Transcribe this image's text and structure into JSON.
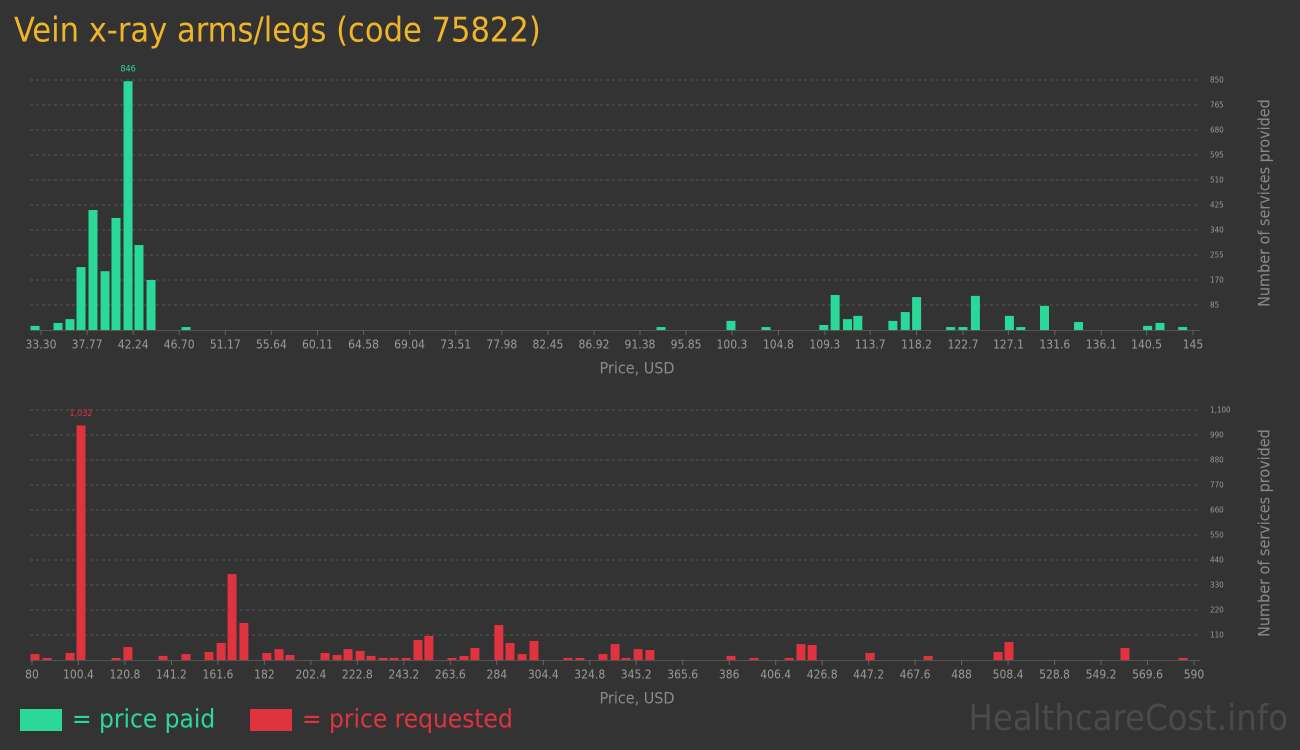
{
  "title": "Vein x-ray arms/legs (code 75822)",
  "watermark": "HealthcareCost.info",
  "chart_data": [
    {
      "type": "bar",
      "xlabel": "Price, USD",
      "ylabel": "Number of services provided",
      "grid": true,
      "max_label": true,
      "x": [
        32.72,
        34.95,
        36.11,
        37.18,
        38.34,
        39.51,
        40.57,
        41.74,
        42.8,
        43.97,
        47.36,
        93.42,
        100.2,
        103.6,
        109.2,
        110.3,
        111.5,
        112.5,
        115.9,
        117.1,
        118.2,
        121.5,
        122.7,
        123.9,
        127.2,
        128.3,
        130.6,
        133.9,
        140.6,
        141.8,
        144.0
      ],
      "series": [
        {
          "name": "= price paid",
          "color": "#2ad89a",
          "values": [
            14,
            24,
            37,
            214,
            408,
            200,
            381,
            846,
            289,
            170,
            10,
            10,
            31,
            10,
            17,
            119,
            37,
            48,
            31,
            61,
            112,
            10,
            10,
            116,
            48,
            10,
            82,
            27,
            14,
            24,
            10
          ]
        }
      ],
      "xlim": [
        33.3,
        145
      ],
      "xticks": [
        {
          "value": 33.3,
          "label": "33.30"
        },
        37.77,
        42.24,
        {
          "value": 46.7,
          "label": "46.70"
        },
        51.17,
        55.64,
        60.11,
        64.58,
        69.04,
        73.51,
        77.98,
        82.45,
        86.92,
        91.38,
        95.85,
        100.3,
        104.8,
        109.3,
        113.7,
        118.2,
        122.7,
        127.1,
        131.6,
        136.1,
        140.5,
        145
      ],
      "ylim": [
        0,
        850
      ],
      "yticks": [
        85,
        170,
        255,
        340,
        425,
        510,
        595,
        680,
        765,
        850
      ]
    },
    {
      "type": "bar",
      "xlabel": "Price, USD",
      "ylabel": "Number of services provided",
      "grid": true,
      "max_label": true,
      "x": [
        81.3,
        86.6,
        96.7,
        101.5,
        116.9,
        122.1,
        137.5,
        147.6,
        157.7,
        163.0,
        167.8,
        173.0,
        183.1,
        188.4,
        193.2,
        208.6,
        213.9,
        218.7,
        224.0,
        228.8,
        234.1,
        238.9,
        244.2,
        249.4,
        254.2,
        264.3,
        269.6,
        274.4,
        284.9,
        289.8,
        295.1,
        300.3,
        315.2,
        320.5,
        330.6,
        335.9,
        340.7,
        346.0,
        351.2,
        386.8,
        396.9,
        412.3,
        417.5,
        422.4,
        447.8,
        473.3,
        504.0,
        508.8,
        559.7,
        585.2
      ],
      "series": [
        {
          "name": "= price requested",
          "color": "#e03340",
          "values": [
            26,
            9,
            31,
            1032,
            9,
            57,
            18,
            26,
            35,
            75,
            378,
            163,
            31,
            48,
            22,
            31,
            22,
            48,
            40,
            18,
            9,
            9,
            9,
            88,
            106,
            9,
            18,
            53,
            154,
            75,
            26,
            84,
            9,
            9,
            26,
            70,
            9,
            48,
            44,
            18,
            9,
            9,
            70,
            66,
            31,
            18,
            35,
            79,
            53,
            9
          ],
          "value_labels": [
            null,
            null,
            null,
            "1,032",
            null,
            null,
            null,
            null,
            null,
            null,
            null,
            null,
            null,
            null,
            null,
            null,
            null,
            null,
            null,
            null,
            null,
            null,
            null,
            null,
            null,
            null,
            null,
            null,
            null,
            null,
            null,
            null,
            null,
            null,
            null,
            null,
            null,
            null,
            null,
            null,
            null,
            null,
            null,
            null,
            null,
            null,
            null,
            null,
            null,
            null
          ]
        }
      ],
      "xlim": [
        80,
        590
      ],
      "xticks": [
        80,
        100.4,
        120.8,
        141.2,
        161.6,
        182,
        202.4,
        222.8,
        243.2,
        263.6,
        284,
        304.4,
        324.8,
        345.2,
        365.6,
        386,
        406.4,
        426.8,
        447.2,
        467.6,
        488,
        508.4,
        528.8,
        549.2,
        569.6,
        590
      ],
      "ylim": [
        0,
        1100
      ],
      "yticks": [
        110,
        220,
        330,
        440,
        550,
        660,
        770,
        880,
        990,
        {
          "value": 1100,
          "label": "1,100"
        }
      ]
    }
  ]
}
